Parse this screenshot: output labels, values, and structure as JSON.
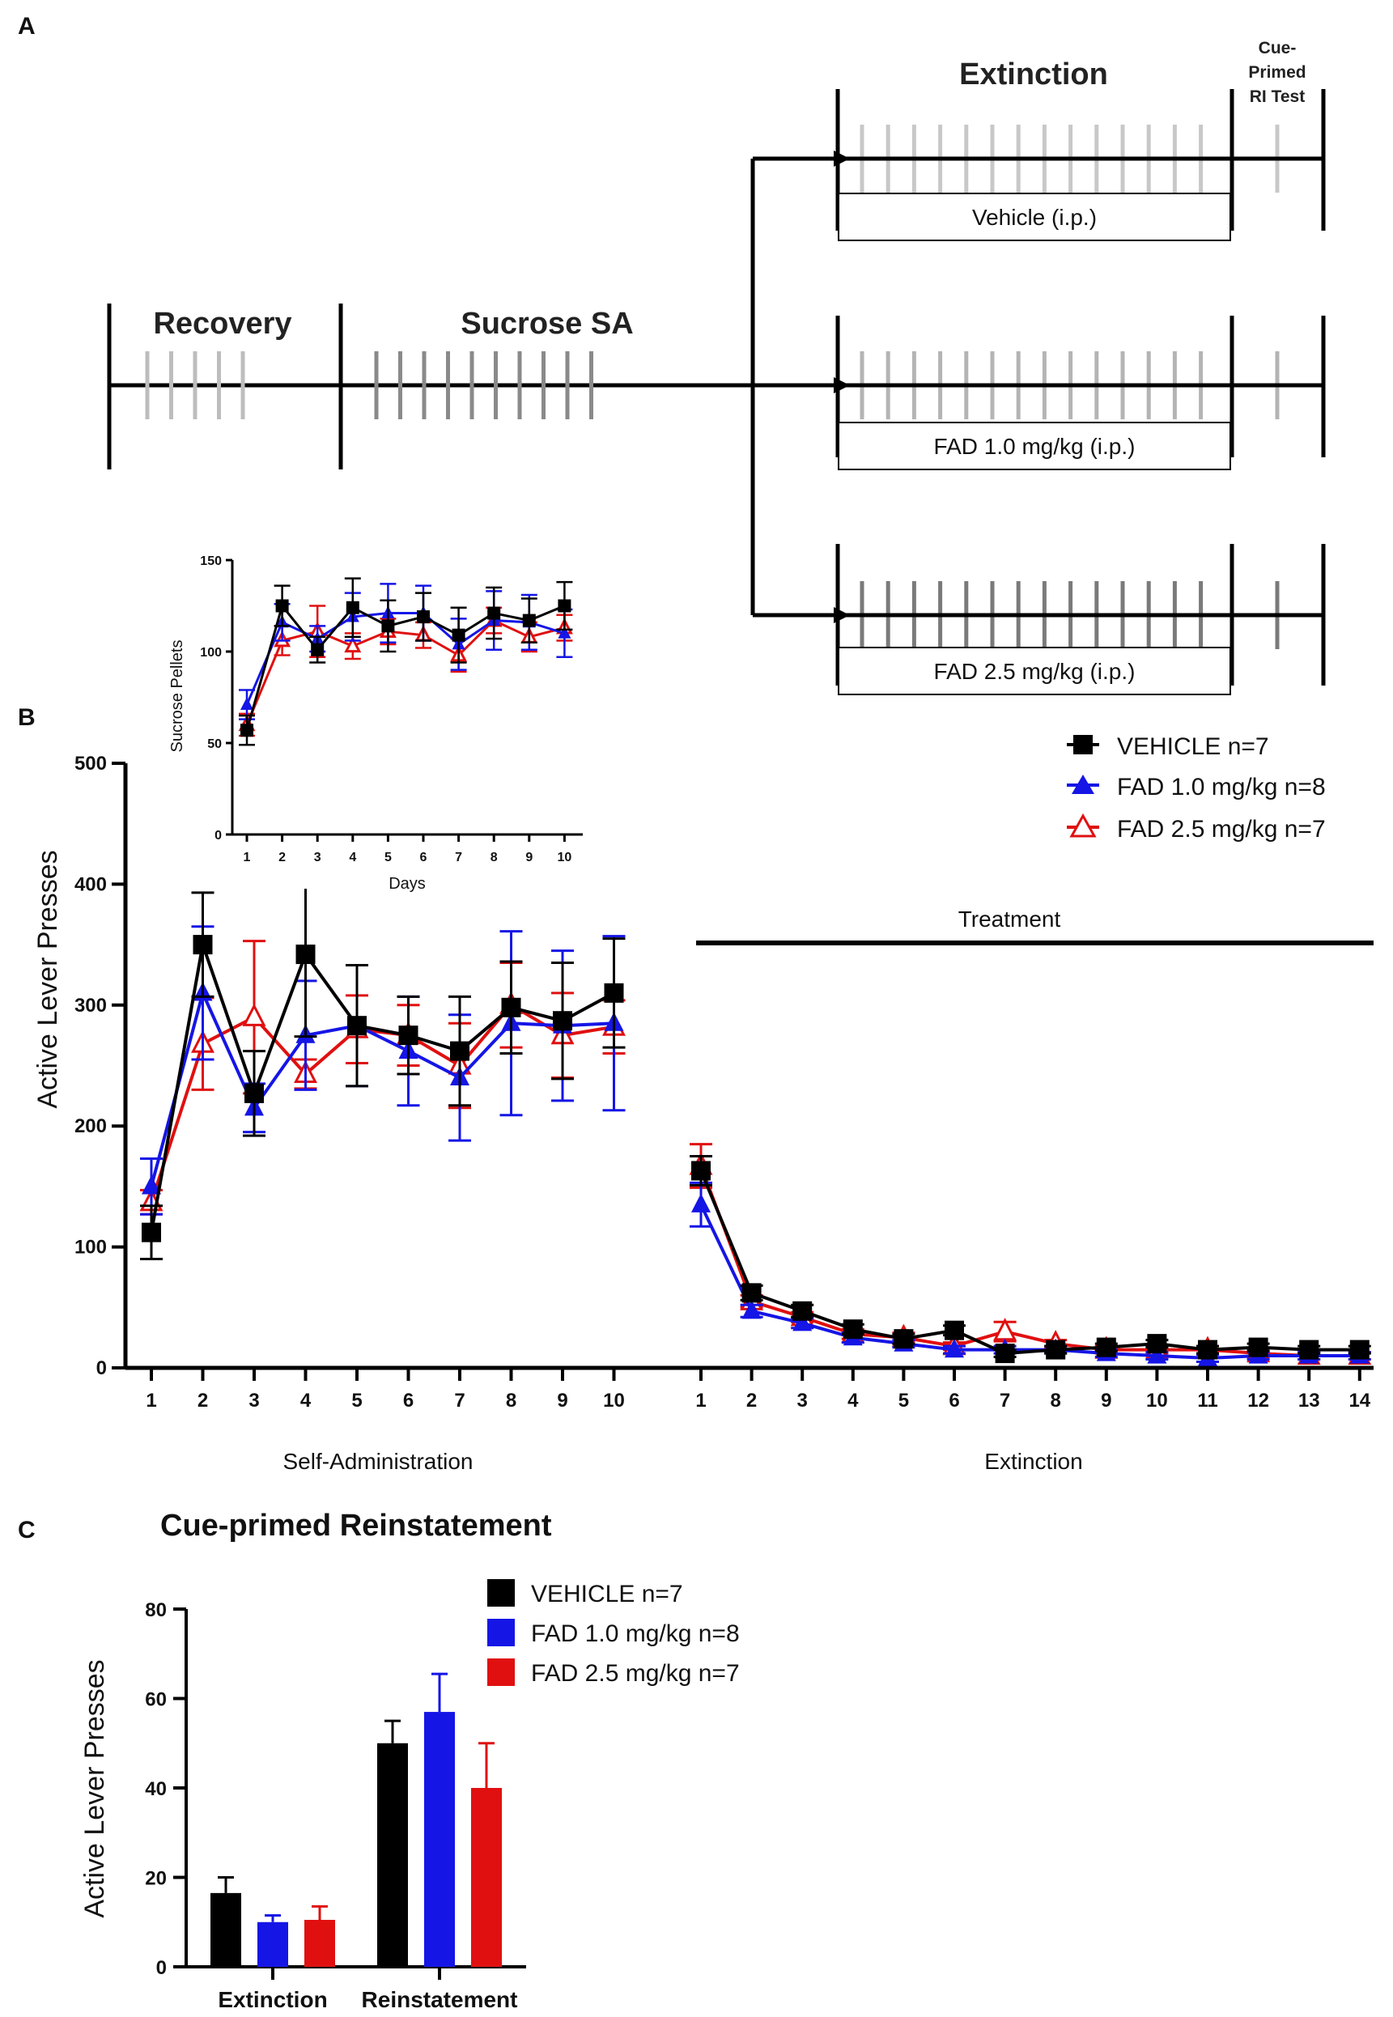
{
  "panels": {
    "a": "A",
    "b": "B",
    "c": "C"
  },
  "timeline": {
    "recovery_label": "Recovery",
    "sucrose_label": "Sucrose SA",
    "extinction_label": "Extinction",
    "ri_test_line1": "Cue-",
    "ri_test_line2": "Primed",
    "ri_test_line3": "RI Test",
    "recovery_days": 5,
    "sucrose_days": 10,
    "extinction_days": 14,
    "ri_test_days": 1,
    "branches": [
      {
        "label": "Vehicle (i.p.)",
        "tick_color": "#c8c8c8"
      },
      {
        "label": "FAD 1.0 mg/kg (i.p.)",
        "tick_color": "#b4b4b4"
      },
      {
        "label": "FAD 2.5 mg/kg (i.p.)",
        "tick_color": "#7a7a7a"
      }
    ],
    "recovery_tick_color": "#bdbdbd",
    "sucrose_tick_color": "#8a8a8a"
  },
  "legend_b": {
    "vehicle": "VEHICLE n=7",
    "fad1": "FAD 1.0 mg/kg n=8",
    "fad25": "FAD 2.5 mg/kg n=7"
  },
  "legend_c": {
    "vehicle": "VEHICLE n=7",
    "fad1": "FAD 1.0 mg/kg n=8",
    "fad25": "FAD 2.5 mg/kg n=7"
  },
  "colors": {
    "vehicle": "#000000",
    "fad1": "#1515e6",
    "fad25": "#e01010"
  },
  "chart_data": [
    {
      "id": "inset",
      "type": "line",
      "title": "",
      "xlabel": "Days",
      "ylabel": "Sucrose Pellets",
      "x": [
        1,
        2,
        3,
        4,
        5,
        6,
        7,
        8,
        9,
        10
      ],
      "x_tick_labels": [
        "1",
        "2",
        "3",
        "4",
        "5",
        "6",
        "7",
        "8",
        "9",
        "10"
      ],
      "ylim": [
        0,
        150
      ],
      "y_ticks": [
        0,
        50,
        100,
        150
      ],
      "series": [
        {
          "name": "VEHICLE n=7",
          "key": "vehicle",
          "marker": "square",
          "values": [
            57,
            125,
            101,
            124,
            114,
            119,
            109,
            121,
            117,
            125
          ],
          "err": [
            8,
            11,
            7,
            16,
            14,
            13,
            15,
            14,
            12,
            13
          ]
        },
        {
          "name": "FAD 1.0 mg/kg n=8",
          "key": "fad1",
          "marker": "triangle",
          "values": [
            71,
            116,
            107,
            119,
            121,
            121,
            104,
            117,
            116,
            110
          ],
          "err": [
            8,
            10,
            7,
            13,
            16,
            15,
            14,
            16,
            15,
            13
          ]
        },
        {
          "name": "FAD 2.5 mg/kg n=7",
          "key": "fad25",
          "marker": "triangle-open",
          "values": [
            60,
            106,
            111,
            103,
            111,
            109,
            98,
            117,
            108,
            113
          ],
          "err": [
            6,
            8,
            14,
            7,
            7,
            7,
            9,
            7,
            8,
            7
          ]
        }
      ]
    },
    {
      "id": "main",
      "type": "line",
      "title": "",
      "ylabel": "Active Lever Presses",
      "ylim": [
        0,
        500
      ],
      "y_ticks": [
        0,
        100,
        200,
        300,
        400,
        500
      ],
      "groups": [
        "Self-Administration",
        "Extinction"
      ],
      "annotation": "Treatment",
      "x_tick_labels_sa": [
        "1",
        "2",
        "3",
        "4",
        "5",
        "6",
        "7",
        "8",
        "9",
        "10"
      ],
      "x_tick_labels_ext": [
        "1",
        "2",
        "3",
        "4",
        "5",
        "6",
        "7",
        "8",
        "9",
        "10",
        "11",
        "12",
        "13",
        "14"
      ],
      "series": [
        {
          "name": "VEHICLE n=7",
          "key": "vehicle",
          "marker": "square",
          "sa": [
            112,
            350,
            227,
            342,
            283,
            275,
            262,
            298,
            287,
            310
          ],
          "sa_err": [
            22,
            43,
            35,
            68,
            50,
            32,
            45,
            38,
            48,
            45
          ],
          "ext": [
            163,
            62,
            47,
            32,
            24,
            31,
            12,
            15,
            17,
            20,
            15,
            17,
            15,
            15
          ],
          "ext_err": [
            12,
            6,
            5,
            4,
            4,
            4,
            3,
            3,
            3,
            3,
            3,
            3,
            3,
            3
          ]
        },
        {
          "name": "FAD 1.0 mg/kg n=8",
          "key": "fad1",
          "marker": "triangle",
          "sa": [
            150,
            310,
            215,
            275,
            283,
            262,
            240,
            285,
            283,
            285
          ],
          "sa_err": [
            23,
            55,
            20,
            45,
            50,
            45,
            52,
            76,
            62,
            72
          ],
          "ext": [
            135,
            47,
            37,
            25,
            20,
            15,
            15,
            15,
            12,
            10,
            8,
            10,
            10,
            10
          ],
          "ext_err": [
            18,
            5,
            4,
            4,
            3,
            3,
            3,
            3,
            3,
            3,
            3,
            3,
            3,
            3
          ]
        },
        {
          "name": "FAD 2.5 mg/kg n=7",
          "key": "fad25",
          "marker": "triangle-open",
          "sa": [
            137,
            268,
            290,
            243,
            280,
            275,
            250,
            300,
            275,
            282
          ],
          "sa_err": [
            10,
            38,
            63,
            12,
            28,
            25,
            35,
            35,
            35,
            22
          ],
          "ext": [
            167,
            55,
            42,
            28,
            25,
            18,
            30,
            20,
            15,
            15,
            15,
            12,
            10,
            10
          ],
          "ext_err": [
            18,
            5,
            4,
            4,
            4,
            3,
            8,
            3,
            3,
            3,
            3,
            3,
            3,
            3
          ]
        }
      ]
    },
    {
      "id": "reinstatement",
      "type": "bar",
      "title": "Cue-primed Reinstatement",
      "ylabel": "Active Lever Presses",
      "categories": [
        "Extinction",
        "Reinstatement"
      ],
      "ylim": [
        0,
        80
      ],
      "y_ticks": [
        0,
        20,
        40,
        60,
        80
      ],
      "series": [
        {
          "name": "VEHICLE n=7",
          "key": "vehicle",
          "values": [
            16.5,
            50
          ],
          "err": [
            3.5,
            5
          ]
        },
        {
          "name": "FAD 1.0 mg/kg n=8",
          "key": "fad1",
          "values": [
            10,
            57
          ],
          "err": [
            1.5,
            8.5
          ]
        },
        {
          "name": "FAD 2.5 mg/kg n=7",
          "key": "fad25",
          "values": [
            10.5,
            40
          ],
          "err": [
            3,
            10
          ]
        }
      ]
    }
  ]
}
